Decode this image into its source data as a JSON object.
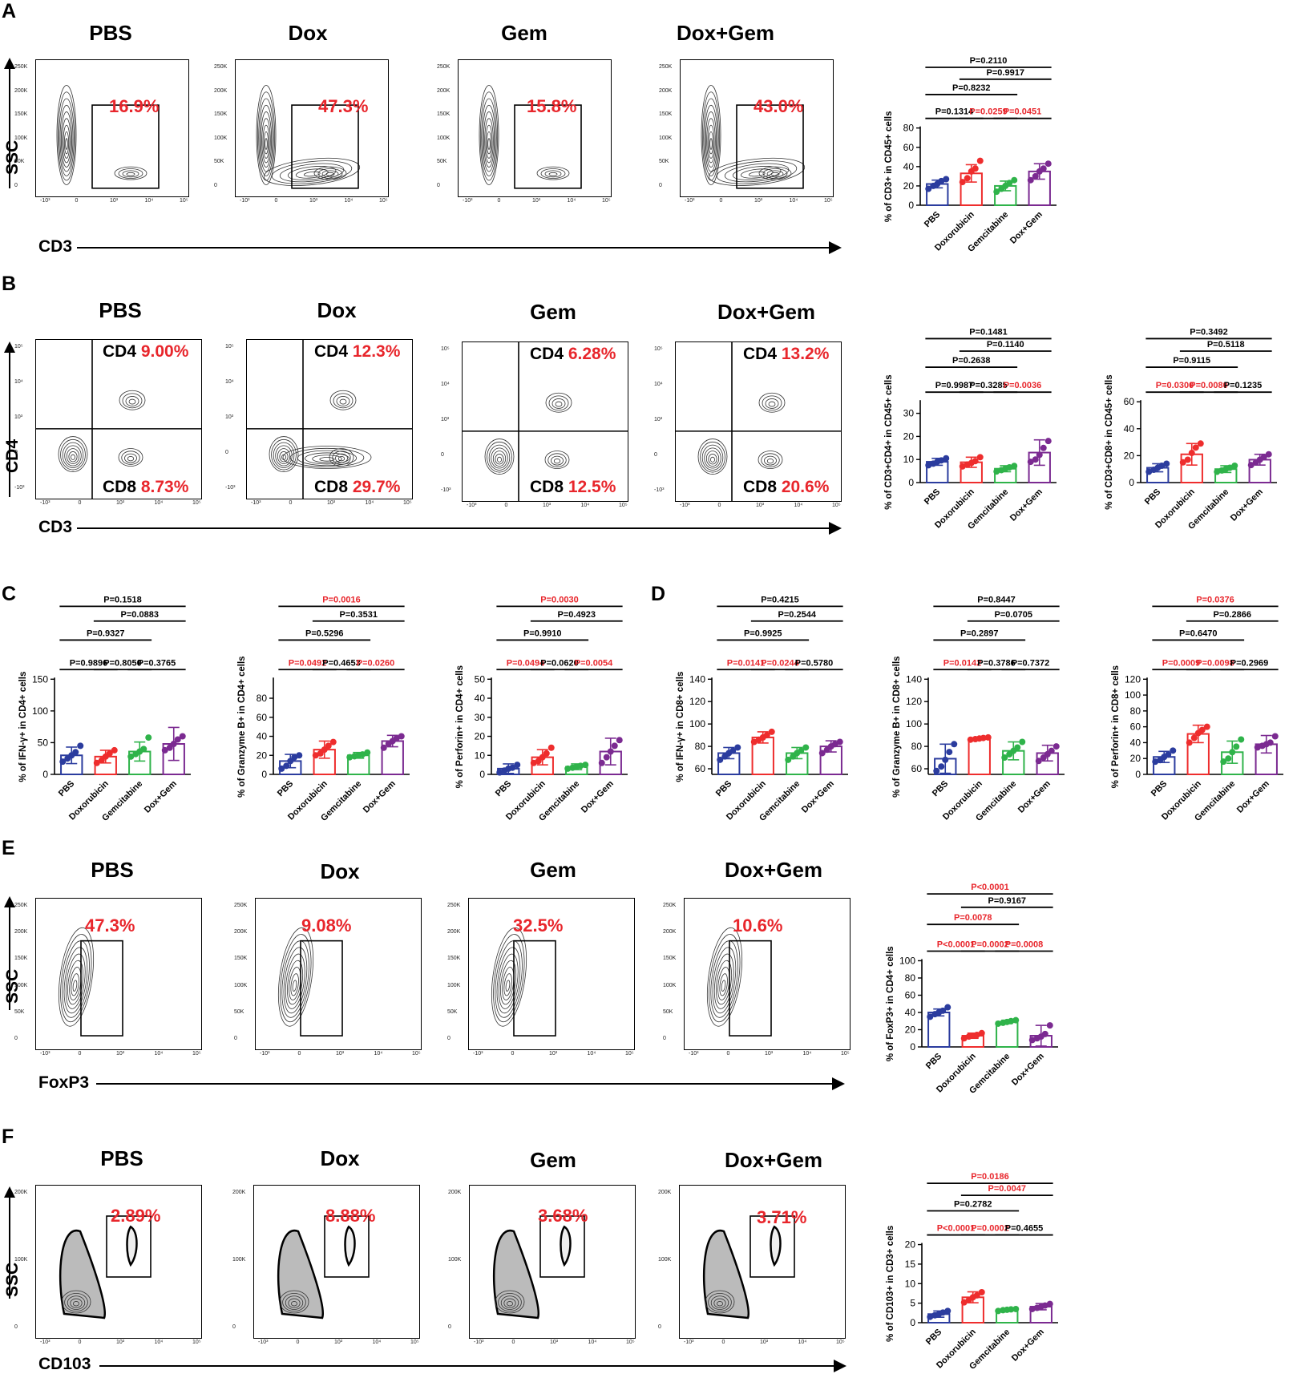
{
  "panel_letters": {
    "A": "A",
    "B": "B",
    "C": "C",
    "D": "D",
    "E": "E",
    "F": "F"
  },
  "groups": [
    "PBS",
    "Dox",
    "Gem",
    "Dox+Gem"
  ],
  "axes": {
    "ssc": "SSC",
    "cd3": "CD3",
    "cd4": "CD4",
    "foxp3": "FoxP3",
    "cd103": "CD103"
  },
  "quadrant_labels": {
    "cd4": "CD4",
    "cd8": "CD8"
  },
  "ticks": {
    "k250": [
      "250K",
      "200K",
      "150K",
      "100K",
      "50K",
      "0"
    ],
    "k200": [
      "200K",
      "100K",
      "0"
    ],
    "log": [
      "-10³",
      "0",
      "10³",
      "10⁴",
      "10⁵"
    ],
    "log_y": [
      "10⁵",
      "10⁴",
      "10³",
      "0",
      "-10³"
    ]
  },
  "facs": {
    "A": [
      "16.9%",
      "47.3%",
      "15.8%",
      "43.0%"
    ],
    "B_cd4": [
      "9.00%",
      "12.3%",
      "6.28%",
      "13.2%"
    ],
    "B_cd8": [
      "8.73%",
      "29.7%",
      "12.5%",
      "20.6%"
    ],
    "E": [
      "47.3%",
      "9.08%",
      "32.5%",
      "10.6%"
    ],
    "F": [
      "2.89%",
      "8.88%",
      "3.68%",
      "3.71%"
    ]
  },
  "colors": {
    "PBS": "#2b3c9e",
    "Doxorubicin": "#ee2d2d",
    "Gemcitabine": "#2fb34a",
    "Dox+Gem": "#7b2a91",
    "significant": "#e8262c",
    "gate": "#000000"
  },
  "chart_data": [
    {
      "id": "A",
      "type": "bar",
      "categories": [
        "PBS",
        "Doxorubicin",
        "Gemcitabine",
        "Dox+Gem"
      ],
      "values": [
        22,
        33,
        20,
        35
      ],
      "sd": [
        4,
        9,
        5,
        8
      ],
      "points": [
        [
          17,
          20,
          22,
          25,
          27
        ],
        [
          24,
          28,
          35,
          38,
          46
        ],
        [
          14,
          17,
          20,
          23,
          26
        ],
        [
          26,
          30,
          35,
          38,
          43
        ]
      ],
      "ylabel": "% of CD3+ in CD45+ cells",
      "ylim": [
        0,
        80
      ],
      "yticks": [
        0,
        20,
        40,
        60,
        80
      ],
      "comparisons": [
        {
          "a": 0,
          "b": 3,
          "label": "P=0.2110",
          "sig": false
        },
        {
          "a": 1,
          "b": 3,
          "label": "P=0.9917",
          "sig": false
        },
        {
          "a": 0,
          "b": 2,
          "label": "P=0.8232",
          "sig": false
        },
        {
          "a": 0,
          "b": 1,
          "label": "P=0.1314",
          "sig": false
        },
        {
          "a": 1,
          "b": 2,
          "label": "P=0.0259",
          "sig": true
        },
        {
          "a": 2,
          "b": 3,
          "label": "P=0.0451",
          "sig": true
        }
      ]
    },
    {
      "id": "B1",
      "type": "bar",
      "categories": [
        "PBS",
        "Doxorubicin",
        "Gemcitabine",
        "Dox+Gem"
      ],
      "values": [
        9,
        8.8,
        6,
        13
      ],
      "sd": [
        1.5,
        2.2,
        1.3,
        5.5
      ],
      "points": [
        [
          7.5,
          8.2,
          9,
          9.6,
          10.5
        ],
        [
          7,
          7.8,
          8.5,
          9.3,
          11
        ],
        [
          4.8,
          5.4,
          6,
          6.6,
          7.2
        ],
        [
          9,
          10,
          12,
          15,
          18
        ]
      ],
      "ylabel": "% of CD3+CD4+ in CD45+ cells",
      "ylim": [
        0,
        35
      ],
      "yticks": [
        0,
        10,
        20,
        30
      ],
      "comparisons": [
        {
          "a": 0,
          "b": 3,
          "label": "P=0.1481",
          "sig": false
        },
        {
          "a": 1,
          "b": 3,
          "label": "P=0.1140",
          "sig": false
        },
        {
          "a": 0,
          "b": 2,
          "label": "P=0.2638",
          "sig": false
        },
        {
          "a": 0,
          "b": 1,
          "label": "P=0.9987",
          "sig": false
        },
        {
          "a": 1,
          "b": 2,
          "label": "P=0.3285",
          "sig": false
        },
        {
          "a": 2,
          "b": 3,
          "label": "P=0.0036",
          "sig": true
        }
      ]
    },
    {
      "id": "B2",
      "type": "bar",
      "categories": [
        "PBS",
        "Doxorubicin",
        "Gemcitabine",
        "Dox+Gem"
      ],
      "values": [
        11,
        21,
        10,
        17
      ],
      "sd": [
        3,
        8,
        2.5,
        4
      ],
      "points": [
        [
          8,
          9.5,
          11,
          12.5,
          14
        ],
        [
          15,
          17,
          22,
          26,
          29
        ],
        [
          8,
          9,
          10,
          11,
          12.5
        ],
        [
          13,
          15,
          17,
          19,
          21
        ]
      ],
      "ylabel": "% of CD3+CD8+ in CD45+ cells",
      "ylim": [
        0,
        60
      ],
      "yticks": [
        0,
        20,
        40,
        60
      ],
      "comparisons": [
        {
          "a": 0,
          "b": 3,
          "label": "P=0.3492",
          "sig": false
        },
        {
          "a": 1,
          "b": 3,
          "label": "P=0.5118",
          "sig": false
        },
        {
          "a": 0,
          "b": 2,
          "label": "P=0.9115",
          "sig": false
        },
        {
          "a": 0,
          "b": 1,
          "label": "P=0.0300",
          "sig": true
        },
        {
          "a": 1,
          "b": 2,
          "label": "P=0.0080",
          "sig": true
        },
        {
          "a": 2,
          "b": 3,
          "label": "P=0.1235",
          "sig": false
        }
      ]
    },
    {
      "id": "C1",
      "type": "bar",
      "categories": [
        "PBS",
        "Doxorubicin",
        "Gemcitabine",
        "Dox+Gem"
      ],
      "values": [
        30,
        28,
        36,
        48
      ],
      "sd": [
        13,
        10,
        15,
        26
      ],
      "points": [
        [
          20,
          25,
          30,
          35,
          45
        ],
        [
          18,
          22,
          28,
          33,
          38
        ],
        [
          28,
          32,
          36,
          40,
          58
        ],
        [
          38,
          42,
          48,
          55,
          60
        ]
      ],
      "ylabel": "% of IFN-γ+ in CD4+ cells",
      "ylim": [
        0,
        150
      ],
      "yticks": [
        0,
        50,
        100,
        150
      ],
      "comparisons": [
        {
          "a": 0,
          "b": 3,
          "label": "P=0.1518",
          "sig": false
        },
        {
          "a": 1,
          "b": 3,
          "label": "P=0.0883",
          "sig": false
        },
        {
          "a": 0,
          "b": 2,
          "label": "P=0.9327",
          "sig": false
        },
        {
          "a": 0,
          "b": 1,
          "label": "P=0.9896",
          "sig": false
        },
        {
          "a": 1,
          "b": 2,
          "label": "P=0.8050",
          "sig": false
        },
        {
          "a": 2,
          "b": 3,
          "label": "P=0.3765",
          "sig": false
        }
      ]
    },
    {
      "id": "C2",
      "type": "bar",
      "categories": [
        "PBS",
        "Doxorubicin",
        "Gemcitabine",
        "Dox+Gem"
      ],
      "values": [
        14,
        26,
        20,
        35
      ],
      "sd": [
        7,
        9,
        3,
        6
      ],
      "points": [
        [
          6,
          9,
          14,
          18,
          20
        ],
        [
          20,
          22,
          26,
          30,
          34
        ],
        [
          18,
          19,
          20,
          21,
          23
        ],
        [
          28,
          32,
          35,
          38,
          40
        ]
      ],
      "ylabel": "% of Granzyme B+ in CD4+ cells",
      "ylim": [
        0,
        100
      ],
      "yticks": [
        0,
        20,
        40,
        60,
        80
      ],
      "comparisons": [
        {
          "a": 0,
          "b": 3,
          "label": "P=0.0016",
          "sig": true
        },
        {
          "a": 1,
          "b": 3,
          "label": "P=0.3531",
          "sig": false
        },
        {
          "a": 0,
          "b": 2,
          "label": "P=0.5296",
          "sig": false
        },
        {
          "a": 0,
          "b": 1,
          "label": "P=0.0492",
          "sig": true
        },
        {
          "a": 1,
          "b": 2,
          "label": "P=0.4653",
          "sig": false
        },
        {
          "a": 2,
          "b": 3,
          "label": "P=0.0260",
          "sig": true
        }
      ]
    },
    {
      "id": "C3",
      "type": "bar",
      "categories": [
        "PBS",
        "Doxorubicin",
        "Gemcitabine",
        "Dox+Gem"
      ],
      "values": [
        3,
        9,
        4,
        12
      ],
      "sd": [
        2.5,
        4,
        1.5,
        7
      ],
      "points": [
        [
          1,
          2,
          3,
          3.5,
          5
        ],
        [
          6,
          7,
          9,
          11,
          14
        ],
        [
          3,
          3.5,
          4,
          4.5,
          5
        ],
        [
          6,
          9,
          12,
          15,
          18
        ]
      ],
      "ylabel": "% of Perforin+ in CD4+ cells",
      "ylim": [
        0,
        50
      ],
      "yticks": [
        0,
        10,
        20,
        30,
        40,
        50
      ],
      "comparisons": [
        {
          "a": 0,
          "b": 3,
          "label": "P=0.0030",
          "sig": true
        },
        {
          "a": 1,
          "b": 3,
          "label": "P=0.4923",
          "sig": false
        },
        {
          "a": 0,
          "b": 2,
          "label": "P=0.9910",
          "sig": false
        },
        {
          "a": 0,
          "b": 1,
          "label": "P=0.0494",
          "sig": true
        },
        {
          "a": 1,
          "b": 2,
          "label": "P=0.0620",
          "sig": false
        },
        {
          "a": 2,
          "b": 3,
          "label": "P=0.0054",
          "sig": true
        }
      ]
    },
    {
      "id": "D1",
      "type": "bar",
      "categories": [
        "PBS",
        "Doxorubicin",
        "Gemcitabine",
        "Dox+Gem"
      ],
      "values": [
        74,
        88,
        74,
        80
      ],
      "sd": [
        5,
        5,
        5,
        5
      ],
      "points": [
        [
          68,
          71,
          74,
          76,
          79
        ],
        [
          84,
          86,
          88,
          90,
          93
        ],
        [
          68,
          71,
          74,
          76,
          79
        ],
        [
          74,
          77,
          80,
          82,
          84
        ]
      ],
      "ylabel": "% of IFN-γ+ in CD8+ cells",
      "ylim": [
        55,
        140
      ],
      "yticks": [
        60,
        80,
        100,
        120,
        140
      ],
      "comparisons": [
        {
          "a": 0,
          "b": 3,
          "label": "P=0.4215",
          "sig": false
        },
        {
          "a": 1,
          "b": 3,
          "label": "P=0.2544",
          "sig": false
        },
        {
          "a": 0,
          "b": 2,
          "label": "P=0.9925",
          "sig": false
        },
        {
          "a": 0,
          "b": 1,
          "label": "P=0.0141",
          "sig": true
        },
        {
          "a": 1,
          "b": 2,
          "label": "P=0.0244",
          "sig": true
        },
        {
          "a": 2,
          "b": 3,
          "label": "P=0.5780",
          "sig": false
        }
      ]
    },
    {
      "id": "D2",
      "type": "bar",
      "categories": [
        "PBS",
        "Doxorubicin",
        "Gemcitabine",
        "Dox+Gem"
      ],
      "values": [
        69,
        87,
        76,
        74
      ],
      "sd": [
        13,
        1,
        8,
        7
      ],
      "points": [
        [
          58,
          62,
          68,
          75,
          82
        ],
        [
          86,
          86.5,
          87,
          87.5,
          88
        ],
        [
          70,
          73,
          76,
          79,
          84
        ],
        [
          67,
          70,
          73,
          76,
          80
        ]
      ],
      "ylabel": "% of Granzyme B+ in CD8+ cells",
      "ylim": [
        55,
        140
      ],
      "yticks": [
        60,
        80,
        100,
        120,
        140
      ],
      "comparisons": [
        {
          "a": 0,
          "b": 3,
          "label": "P=0.8447",
          "sig": false
        },
        {
          "a": 1,
          "b": 3,
          "label": "P=0.0705",
          "sig": false
        },
        {
          "a": 0,
          "b": 2,
          "label": "P=0.2897",
          "sig": false
        },
        {
          "a": 0,
          "b": 1,
          "label": "P=0.0142",
          "sig": true
        },
        {
          "a": 1,
          "b": 2,
          "label": "P=0.3786",
          "sig": false
        },
        {
          "a": 2,
          "b": 3,
          "label": "P=0.7372",
          "sig": false
        }
      ]
    },
    {
      "id": "D3",
      "type": "bar",
      "categories": [
        "PBS",
        "Doxorubicin",
        "Gemcitabine",
        "Dox+Gem"
      ],
      "values": [
        22,
        51,
        28,
        38
      ],
      "sd": [
        7,
        11,
        14,
        11
      ],
      "points": [
        [
          16,
          18,
          22,
          25,
          30
        ],
        [
          40,
          46,
          52,
          56,
          60
        ],
        [
          16,
          20,
          28,
          35,
          44
        ],
        [
          34,
          36,
          38,
          40,
          48
        ]
      ],
      "ylabel": "% of Perforin+ in CD8+ cells",
      "ylim": [
        0,
        120
      ],
      "yticks": [
        0,
        20,
        40,
        60,
        80,
        100,
        120
      ],
      "comparisons": [
        {
          "a": 0,
          "b": 3,
          "label": "P=0.0376",
          "sig": true
        },
        {
          "a": 1,
          "b": 3,
          "label": "P=0.2866",
          "sig": false
        },
        {
          "a": 0,
          "b": 2,
          "label": "P=0.6470",
          "sig": false
        },
        {
          "a": 0,
          "b": 1,
          "label": "P=0.0009",
          "sig": true
        },
        {
          "a": 1,
          "b": 2,
          "label": "P=0.0098",
          "sig": true
        },
        {
          "a": 2,
          "b": 3,
          "label": "P=0.2969",
          "sig": false
        }
      ]
    },
    {
      "id": "E",
      "type": "bar",
      "categories": [
        "PBS",
        "Doxorubicin",
        "Gemcitabine",
        "Dox+Gem"
      ],
      "values": [
        40,
        13,
        29,
        13
      ],
      "sd": [
        4,
        3,
        2,
        12
      ],
      "points": [
        [
          35,
          38,
          40,
          42,
          46
        ],
        [
          10,
          12,
          13,
          14,
          16
        ],
        [
          27,
          28,
          29,
          30,
          31
        ],
        [
          8,
          10,
          12,
          15,
          25
        ]
      ],
      "ylabel": "% of FoxP3+ in CD4+ cells",
      "ylim": [
        0,
        100
      ],
      "yticks": [
        0,
        20,
        40,
        60,
        80,
        100
      ],
      "comparisons": [
        {
          "a": 0,
          "b": 3,
          "label": "P<0.0001",
          "sig": true
        },
        {
          "a": 1,
          "b": 3,
          "label": "P=0.9167",
          "sig": false
        },
        {
          "a": 0,
          "b": 2,
          "label": "P=0.0078",
          "sig": true
        },
        {
          "a": 0,
          "b": 1,
          "label": "P<0.0001",
          "sig": true
        },
        {
          "a": 1,
          "b": 2,
          "label": "P=0.0002",
          "sig": true
        },
        {
          "a": 2,
          "b": 3,
          "label": "P=0.0008",
          "sig": true
        }
      ]
    },
    {
      "id": "F",
      "type": "bar",
      "categories": [
        "PBS",
        "Doxorubicin",
        "Gemcitabine",
        "Dox+Gem"
      ],
      "values": [
        2.2,
        6.5,
        3.3,
        4.1
      ],
      "sd": [
        0.8,
        1.4,
        0.3,
        0.8
      ],
      "points": [
        [
          1.5,
          1.9,
          2.2,
          2.6,
          3.0
        ],
        [
          5.2,
          5.8,
          6.5,
          7.0,
          7.8
        ],
        [
          3.0,
          3.2,
          3.3,
          3.4,
          3.5
        ],
        [
          3.5,
          3.8,
          4.1,
          4.4,
          4.8
        ]
      ],
      "ylabel": "% of CD103+ in CD3+ cells",
      "ylim": [
        0,
        20
      ],
      "yticks": [
        0,
        5,
        10,
        15,
        20
      ],
      "comparisons": [
        {
          "a": 0,
          "b": 3,
          "label": "P=0.0186",
          "sig": true
        },
        {
          "a": 1,
          "b": 3,
          "label": "P=0.0047",
          "sig": true
        },
        {
          "a": 0,
          "b": 2,
          "label": "P=0.2782",
          "sig": false
        },
        {
          "a": 0,
          "b": 1,
          "label": "P<0.0001",
          "sig": true
        },
        {
          "a": 1,
          "b": 2,
          "label": "P=0.0002",
          "sig": true
        },
        {
          "a": 2,
          "b": 3,
          "label": "P=0.4655",
          "sig": false
        }
      ]
    }
  ]
}
